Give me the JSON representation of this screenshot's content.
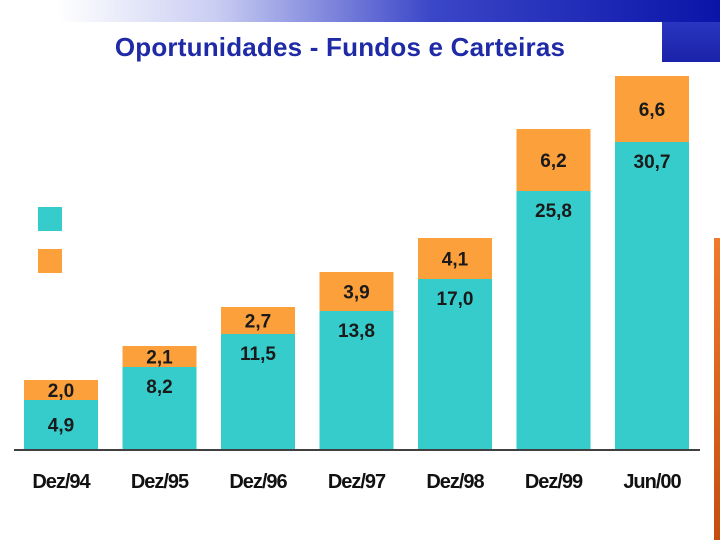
{
  "title": "Oportunidades - Fundos e Carteiras",
  "colors": {
    "series_bottom": "#36cccc",
    "series_top": "#fca03c",
    "title": "#1f2aa6",
    "axis": "#000000"
  },
  "chart_data": {
    "type": "bar",
    "stacked": true,
    "categories": [
      "Dez/94",
      "Dez/95",
      "Dez/96",
      "Dez/97",
      "Dez/98",
      "Dez/99",
      "Jun/00"
    ],
    "series": [
      {
        "color": "#36cccc",
        "values": [
          4.9,
          8.2,
          11.5,
          13.8,
          17.0,
          25.8,
          30.7
        ],
        "labels": [
          "4,9",
          "8,2",
          "11,5",
          "13,8",
          "17,0",
          "25,8",
          "30,7"
        ]
      },
      {
        "color": "#fca03c",
        "values": [
          2.0,
          2.1,
          2.7,
          3.9,
          4.1,
          6.2,
          6.6
        ],
        "labels": [
          "2,0",
          "2,1",
          "2,7",
          "3,9",
          "4,1",
          "6,2",
          "6,6"
        ]
      }
    ],
    "ylim": [
      0,
      40
    ],
    "grid": false,
    "legend": {
      "position": "left",
      "entries": [
        "",
        ""
      ]
    },
    "title": "Oportunidades - Fundos e Carteiras"
  }
}
